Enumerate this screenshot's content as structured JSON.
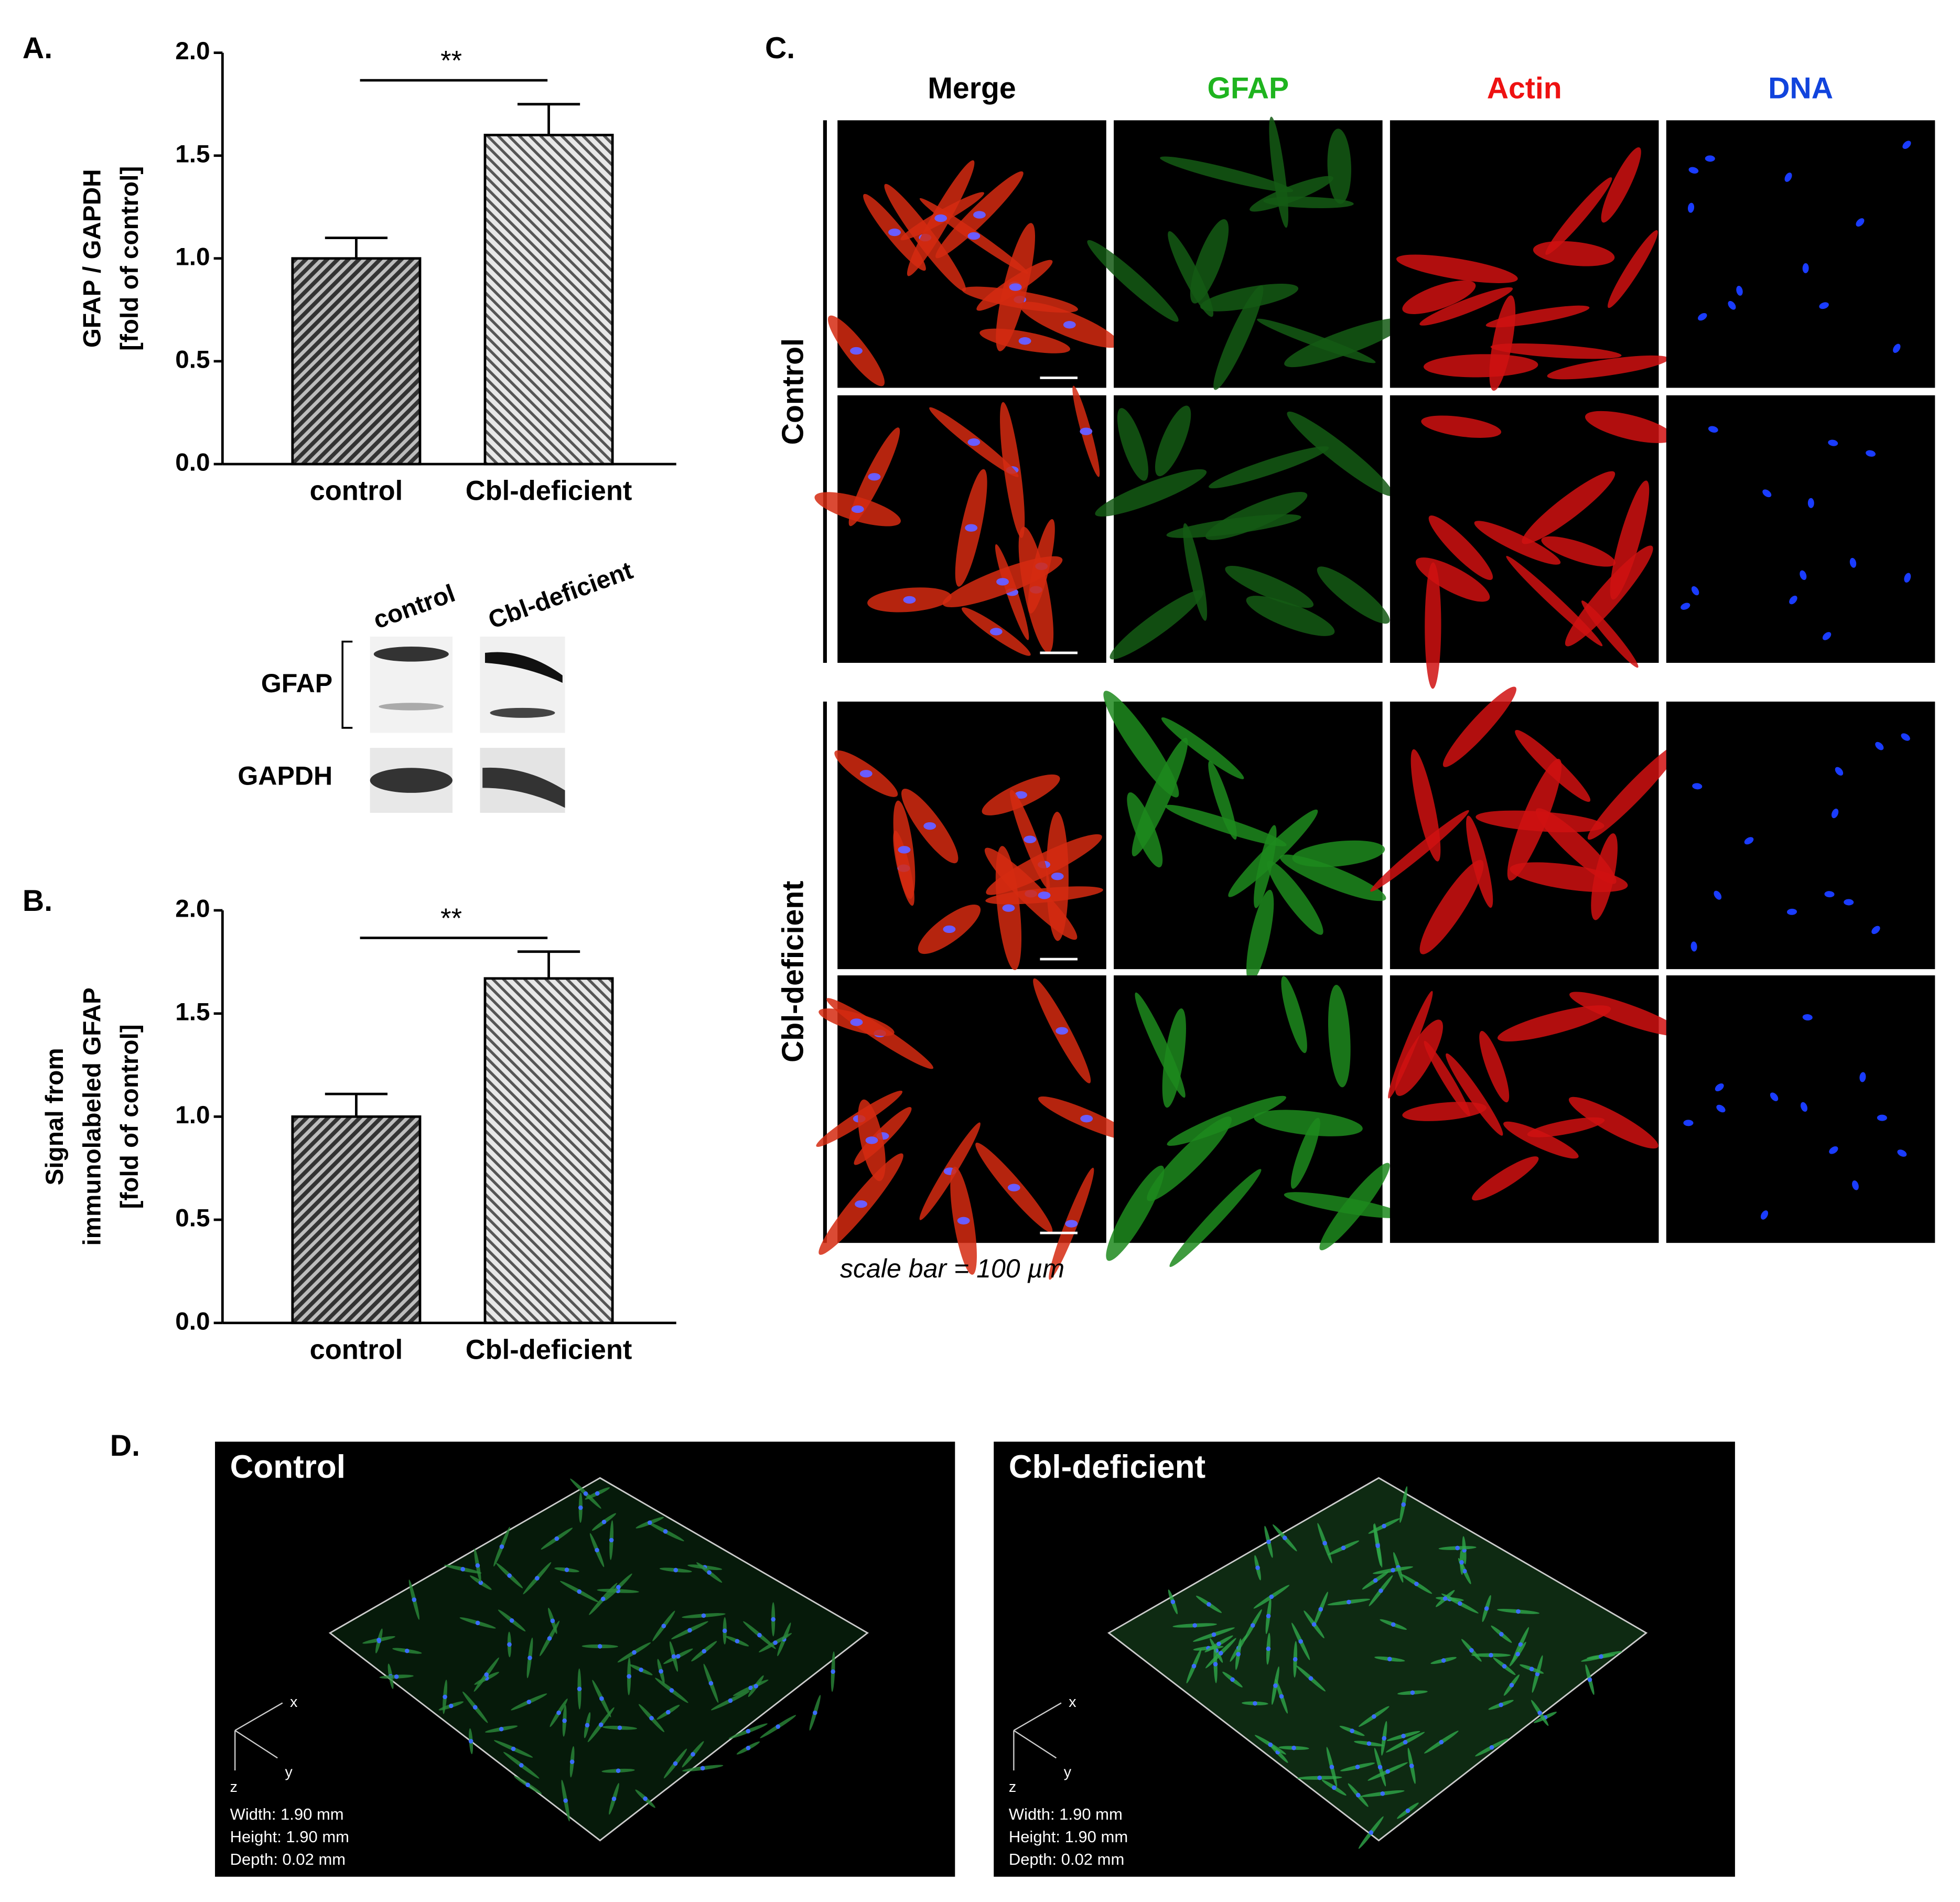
{
  "panel_labels": [
    "A.",
    "B.",
    "C.",
    "D."
  ],
  "chart_data": [
    {
      "type": "bar",
      "y_label": [
        "GFAP / GAPDH",
        "[fold of control]"
      ],
      "categories": [
        "control",
        "Cbl-deficient"
      ],
      "values": [
        1.0,
        1.6
      ],
      "errors": [
        0.1,
        0.15
      ],
      "significance": "**",
      "ylim": [
        0,
        2
      ],
      "yticks": [
        {
          "value": 0,
          "label": "0.0"
        },
        {
          "value": 0.5,
          "label": "0.5"
        },
        {
          "value": 1,
          "label": "1.0"
        },
        {
          "value": 1.5,
          "label": "1.5"
        },
        {
          "value": 2,
          "label": "2.0"
        }
      ],
      "colors": [
        "#555555",
        "#9a9a9a"
      ]
    },
    {
      "type": "bar",
      "y_label": [
        "Signal from",
        "immunolabeled GFAP",
        "[fold of control]"
      ],
      "categories": [
        "control",
        "Cbl-deficient"
      ],
      "values": [
        1.0,
        1.67
      ],
      "errors": [
        0.11,
        0.13
      ],
      "significance": "**",
      "ylim": [
        0,
        2
      ],
      "yticks": [
        {
          "value": 0,
          "label": "0.0"
        },
        {
          "value": 0.5,
          "label": "0.5"
        },
        {
          "value": 1,
          "label": "1.0"
        },
        {
          "value": 1.5,
          "label": "1.5"
        },
        {
          "value": 2,
          "label": "2.0"
        }
      ],
      "colors": [
        "#555555",
        "#9a9a9a"
      ]
    }
  ],
  "western_blot": {
    "lanes": [
      "control",
      "Cbl-deficient"
    ],
    "rows": [
      "GFAP",
      "GAPDH"
    ]
  },
  "microscopy": {
    "columns": [
      "Merge",
      "GFAP",
      "Actin",
      "DNA"
    ],
    "rows": [
      "Control",
      "Cbl-deficient"
    ],
    "caption": "scale bar = 100 µm"
  },
  "renders": {
    "panels": [
      {
        "title": "Control",
        "info": [
          "Width: 1.90 mm",
          "Height: 1.90 mm",
          "Depth: 0.02 mm"
        ]
      },
      {
        "title": "Cbl-deficient",
        "info": [
          "Width: 1.90 mm",
          "Height: 1.90 mm",
          "Depth: 0.02 mm"
        ]
      }
    ],
    "axes": [
      "x",
      "y",
      "z"
    ]
  }
}
